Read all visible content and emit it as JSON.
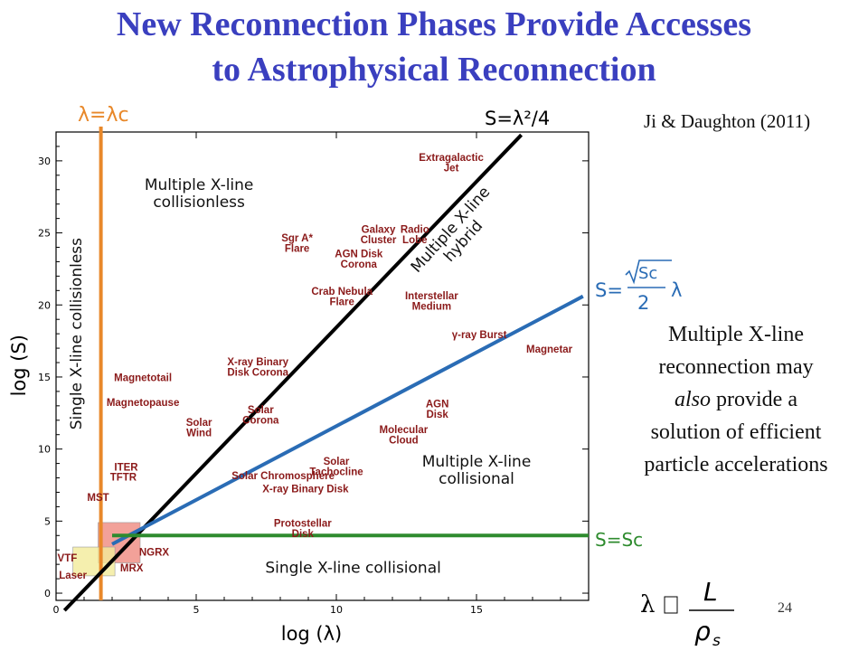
{
  "slide": {
    "title_line1": "New Reconnection Phases Provide Accesses",
    "title_line2": "to Astrophysical Reconnection",
    "citation": "Ji & Daughton (2011)",
    "note_line1": "Multiple X-line",
    "note_line2": "reconnection may",
    "note_line3_em": "also",
    "note_line3_rest": " provide a",
    "note_line4": "solution of efficient",
    "note_line5": "particle accelerations",
    "page_number": "24",
    "formula": "λ ∼ L / ρs"
  },
  "chart_data": {
    "type": "scatter",
    "xlabel": "log (λ)",
    "ylabel": "log (S)",
    "xlim": [
      0,
      19
    ],
    "ylim": [
      -0.5,
      32
    ],
    "xticks": [
      0,
      5,
      10,
      15
    ],
    "yticks": [
      0,
      5,
      10,
      15,
      20,
      25,
      30
    ],
    "lines": [
      {
        "name": "λ=λc",
        "color": "#e8882a",
        "kind": "vertical",
        "x": 1.6
      },
      {
        "name": "S=λ²/4",
        "color": "#000000",
        "kind": "points",
        "points": [
          [
            0.3,
            -1.2
          ],
          [
            16.6,
            31.8
          ]
        ]
      },
      {
        "name": "S=√Sc/2 λ",
        "color": "#2a6cb5",
        "kind": "points",
        "points": [
          [
            2.0,
            3.4
          ],
          [
            18.8,
            20.6
          ]
        ]
      },
      {
        "name": "S=Sc",
        "color": "#2e8b2e",
        "kind": "horizontal",
        "y": 4,
        "from": 2.0
      }
    ],
    "regions": [
      {
        "label": "Multiple X-line|collisionless",
        "x": 5.1,
        "y": 28.0,
        "rotate": 0
      },
      {
        "label": "Single X-line collisionless",
        "x": 0.9,
        "y": 18.0,
        "rotate": -90
      },
      {
        "label": "Multiple X-line|hybrid",
        "x": 14.2,
        "y": 25.0,
        "rotate": -48
      },
      {
        "label": "Multiple X-line|collisional",
        "x": 15.0,
        "y": 8.8,
        "rotate": 0
      },
      {
        "label": "Single X-line collisional",
        "x": 10.6,
        "y": 1.4,
        "rotate": 0
      }
    ],
    "boxes": [
      {
        "x": [
          1.5,
          3.0
        ],
        "y": [
          2.1,
          4.9
        ],
        "color": "#ef8a80"
      },
      {
        "x": [
          0.6,
          2.1
        ],
        "y": [
          1.2,
          3.2
        ],
        "color": "#f3eb9a"
      }
    ],
    "objects": [
      {
        "label": "Extragalactic|Jet",
        "x": 14.1,
        "y": 30.0
      },
      {
        "label": "Galaxy|Cluster",
        "x": 11.5,
        "y": 25.0
      },
      {
        "label": "Radio|Lobe",
        "x": 12.8,
        "y": 25.0
      },
      {
        "label": "Sgr A*|Flare",
        "x": 8.6,
        "y": 24.4
      },
      {
        "label": "AGN Disk|Corona",
        "x": 10.8,
        "y": 23.3
      },
      {
        "label": "Crab Nebula|Flare",
        "x": 10.2,
        "y": 20.7
      },
      {
        "label": "Interstellar|Medium",
        "x": 13.4,
        "y": 20.4
      },
      {
        "label": "γ-ray Burst",
        "x": 15.1,
        "y": 17.7
      },
      {
        "label": "Magnetar",
        "x": 17.6,
        "y": 16.7
      },
      {
        "label": "X-ray Binary|Disk Corona",
        "x": 7.2,
        "y": 15.8
      },
      {
        "label": "Magnetotail",
        "x": 3.1,
        "y": 14.7
      },
      {
        "label": "Magnetopause",
        "x": 3.1,
        "y": 13.0
      },
      {
        "label": "Solar|Corona",
        "x": 7.3,
        "y": 12.5
      },
      {
        "label": "Solar|Wind",
        "x": 5.1,
        "y": 11.6
      },
      {
        "label": "AGN|Disk",
        "x": 13.6,
        "y": 12.9
      },
      {
        "label": "Molecular|Cloud",
        "x": 12.4,
        "y": 11.1
      },
      {
        "label": "Solar|Tachocline",
        "x": 10.0,
        "y": 8.9
      },
      {
        "label": "ITER",
        "x": 2.5,
        "y": 8.5
      },
      {
        "label": "TFTR",
        "x": 2.4,
        "y": 7.8
      },
      {
        "label": "Solar Chromosphere",
        "x": 8.1,
        "y": 7.9
      },
      {
        "label": "X-ray Binary Disk",
        "x": 8.9,
        "y": 7.0
      },
      {
        "label": "MST",
        "x": 1.5,
        "y": 6.4
      },
      {
        "label": "Protostellar|Disk",
        "x": 8.8,
        "y": 4.6
      },
      {
        "label": "NGRX",
        "x": 3.5,
        "y": 2.6
      },
      {
        "label": "MRX",
        "x": 2.7,
        "y": 1.5
      },
      {
        "label": "VTF",
        "x": 0.4,
        "y": 2.2
      },
      {
        "label": "Laser",
        "x": 0.6,
        "y": 1.0
      }
    ]
  }
}
